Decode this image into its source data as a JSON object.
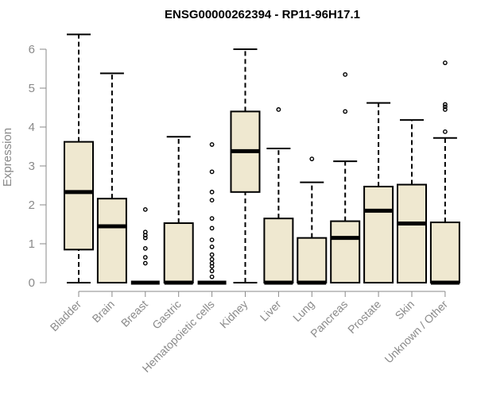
{
  "chart_data": {
    "type": "boxplot",
    "title": "ENSG00000262394 - RP11-96H17.1",
    "ylabel": "Expression",
    "xlabel": "",
    "ylim": [
      0,
      6.5
    ],
    "yticks": [
      0,
      1,
      2,
      3,
      4,
      5,
      6
    ],
    "colors": {
      "box_fill": "#efe8d0",
      "box_stroke": "#000000",
      "median": "#000000",
      "axis": "#8a8a8a"
    },
    "categories": [
      "Bladder",
      "Brain",
      "Breast",
      "Gastric",
      "Hematopoietic cells",
      "Kidney",
      "Liver",
      "Lung",
      "Pancreas",
      "Prostate",
      "Skin",
      "Unknown / Other"
    ],
    "boxes": [
      {
        "name": "Bladder",
        "min": 0,
        "q1": 0.85,
        "median": 2.33,
        "q3": 3.62,
        "max": 6.38,
        "outliers": []
      },
      {
        "name": "Brain",
        "min": 0,
        "q1": 0,
        "median": 1.45,
        "q3": 2.16,
        "max": 5.38,
        "outliers": []
      },
      {
        "name": "Breast",
        "min": 0,
        "q1": 0,
        "median": 0,
        "q3": 0,
        "max": 0,
        "outliers": [
          1.88,
          1.3,
          1.22,
          1.15,
          0.88,
          0.65,
          0.5
        ]
      },
      {
        "name": "Gastric",
        "min": 0,
        "q1": 0,
        "median": 0,
        "q3": 1.53,
        "max": 3.75,
        "outliers": []
      },
      {
        "name": "Hematopoietic cells",
        "min": 0,
        "q1": 0,
        "median": 0,
        "q3": 0,
        "max": 0,
        "outliers": [
          3.55,
          2.85,
          2.33,
          2.12,
          1.65,
          1.4,
          1.1,
          0.92,
          0.72,
          0.6,
          0.5,
          0.42,
          0.3,
          0.15
        ]
      },
      {
        "name": "Kidney",
        "min": 0,
        "q1": 2.33,
        "median": 3.38,
        "q3": 4.4,
        "max": 6.0,
        "outliers": []
      },
      {
        "name": "Liver",
        "min": 0,
        "q1": 0,
        "median": 0,
        "q3": 1.65,
        "max": 3.45,
        "outliers": [
          4.45
        ]
      },
      {
        "name": "Lung",
        "min": 0,
        "q1": 0,
        "median": 0,
        "q3": 1.15,
        "max": 2.58,
        "outliers": [
          3.18
        ]
      },
      {
        "name": "Pancreas",
        "min": 0,
        "q1": 0,
        "median": 1.15,
        "q3": 1.58,
        "max": 3.12,
        "outliers": [
          5.35,
          4.4
        ]
      },
      {
        "name": "Prostate",
        "min": 0,
        "q1": 0,
        "median": 1.85,
        "q3": 2.47,
        "max": 4.62,
        "outliers": []
      },
      {
        "name": "Skin",
        "min": 0,
        "q1": 0,
        "median": 1.52,
        "q3": 2.52,
        "max": 4.18,
        "outliers": []
      },
      {
        "name": "Unknown / Other",
        "min": 0,
        "q1": 0,
        "median": 0,
        "q3": 1.55,
        "max": 3.72,
        "outliers": [
          5.65,
          4.58,
          4.52,
          4.45,
          3.88
        ]
      }
    ]
  }
}
